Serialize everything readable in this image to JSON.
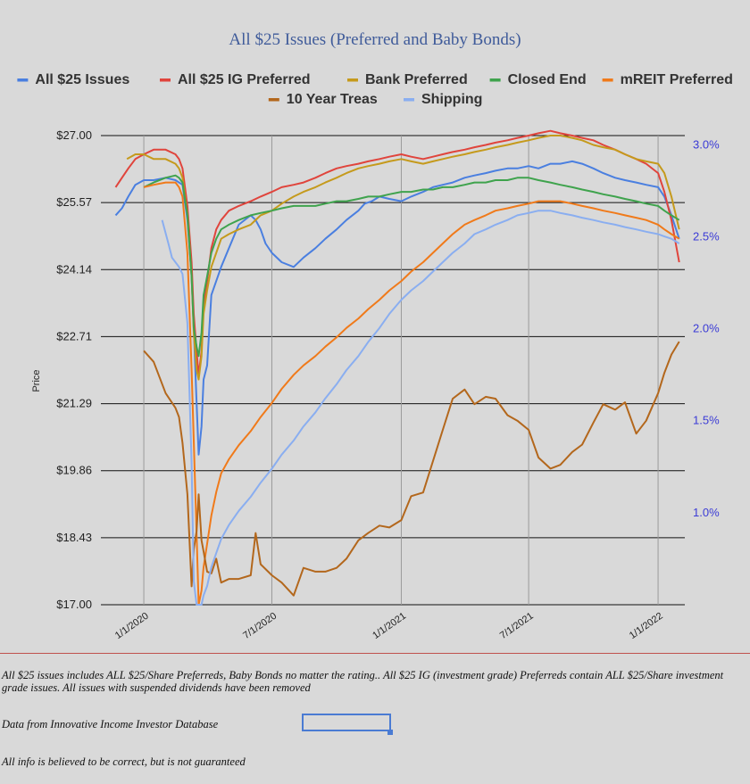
{
  "chart_data": {
    "type": "line",
    "title": "All $25 Issues (Preferred and Baby Bonds)",
    "ylabel": "Price",
    "ylim": [
      17.0,
      27.0
    ],
    "y2lim": [
      0.5,
      3.05
    ],
    "y_ticks": [
      "$17.00",
      "$18.43",
      "$19.86",
      "$21.29",
      "$22.71",
      "$24.14",
      "$25.57",
      "$27.00"
    ],
    "y2_ticks": [
      "1.0%",
      "1.5%",
      "2.0%",
      "2.5%",
      "3.0%"
    ],
    "y2_tick_values": [
      1.0,
      1.5,
      2.0,
      2.5,
      3.0
    ],
    "x_ticks": [
      "1/1/2020",
      "7/1/2020",
      "1/1/2021",
      "7/1/2021",
      "1/1/2022"
    ],
    "legend_position": "top",
    "series": [
      {
        "name": "All $25 Issues",
        "color": "#4a7fe0",
        "axis": "left",
        "x": [
          "2019-11-22",
          "2019-12-01",
          "2019-12-10",
          "2019-12-20",
          "2020-01-01",
          "2020-01-15",
          "2020-02-01",
          "2020-02-15",
          "2020-02-20",
          "2020-02-25",
          "2020-03-03",
          "2020-03-09",
          "2020-03-12",
          "2020-03-16",
          "2020-03-19",
          "2020-03-23",
          "2020-03-26",
          "2020-03-31",
          "2020-04-06",
          "2020-04-13",
          "2020-04-20",
          "2020-05-01",
          "2020-05-15",
          "2020-06-01",
          "2020-06-08",
          "2020-06-15",
          "2020-06-22",
          "2020-07-01",
          "2020-07-15",
          "2020-08-01",
          "2020-08-15",
          "2020-09-01",
          "2020-09-15",
          "2020-10-01",
          "2020-10-15",
          "2020-11-01",
          "2020-11-10",
          "2020-11-20",
          "2020-12-01",
          "2020-12-15",
          "2021-01-01",
          "2021-01-15",
          "2021-02-01",
          "2021-02-15",
          "2021-03-01",
          "2021-03-15",
          "2021-04-01",
          "2021-04-15",
          "2021-05-01",
          "2021-05-15",
          "2021-06-01",
          "2021-06-15",
          "2021-07-01",
          "2021-07-15",
          "2021-08-01",
          "2021-08-15",
          "2021-09-01",
          "2021-09-15",
          "2021-10-01",
          "2021-10-15",
          "2021-11-01",
          "2021-11-15",
          "2021-12-01",
          "2021-12-15",
          "2022-01-01",
          "2022-01-10",
          "2022-01-20",
          "2022-01-31"
        ],
        "values": [
          25.3,
          25.45,
          25.7,
          25.95,
          26.05,
          26.05,
          26.1,
          26.05,
          26.0,
          25.95,
          25.2,
          24.0,
          22.9,
          21.3,
          20.2,
          20.8,
          21.8,
          22.1,
          23.6,
          23.9,
          24.2,
          24.6,
          25.1,
          25.3,
          25.2,
          25.0,
          24.7,
          24.5,
          24.3,
          24.2,
          24.4,
          24.6,
          24.8,
          25.0,
          25.2,
          25.4,
          25.55,
          25.6,
          25.7,
          25.65,
          25.6,
          25.7,
          25.8,
          25.9,
          25.95,
          26.0,
          26.1,
          26.15,
          26.2,
          26.25,
          26.3,
          26.3,
          26.35,
          26.3,
          26.4,
          26.4,
          26.45,
          26.4,
          26.3,
          26.2,
          26.1,
          26.05,
          26.0,
          25.95,
          25.9,
          25.7,
          25.3,
          24.8
        ]
      },
      {
        "name": "All $25 IG Preferred",
        "color": "#e0443c",
        "axis": "left",
        "x": [
          "2019-11-22",
          "2019-12-01",
          "2019-12-10",
          "2019-12-20",
          "2020-01-01",
          "2020-01-15",
          "2020-02-01",
          "2020-02-15",
          "2020-02-20",
          "2020-02-25",
          "2020-03-03",
          "2020-03-09",
          "2020-03-12",
          "2020-03-16",
          "2020-03-19",
          "2020-03-23",
          "2020-03-26",
          "2020-03-31",
          "2020-04-06",
          "2020-04-13",
          "2020-04-20",
          "2020-05-01",
          "2020-05-15",
          "2020-06-01",
          "2020-06-15",
          "2020-07-01",
          "2020-07-15",
          "2020-08-01",
          "2020-08-15",
          "2020-09-01",
          "2020-09-15",
          "2020-10-01",
          "2020-10-15",
          "2020-11-01",
          "2020-11-15",
          "2020-12-01",
          "2020-12-15",
          "2021-01-01",
          "2021-01-15",
          "2021-02-01",
          "2021-02-15",
          "2021-03-01",
          "2021-03-15",
          "2021-04-01",
          "2021-04-15",
          "2021-05-01",
          "2021-05-15",
          "2021-06-01",
          "2021-06-15",
          "2021-07-01",
          "2021-07-15",
          "2021-08-01",
          "2021-08-15",
          "2021-09-01",
          "2021-09-15",
          "2021-10-01",
          "2021-10-15",
          "2021-11-01",
          "2021-11-15",
          "2021-12-01",
          "2021-12-15",
          "2022-01-01",
          "2022-01-10",
          "2022-01-20",
          "2022-01-31"
        ],
        "values": [
          25.9,
          26.1,
          26.3,
          26.5,
          26.6,
          26.7,
          26.7,
          26.6,
          26.5,
          26.3,
          25.5,
          24.3,
          23.2,
          22.4,
          21.9,
          22.4,
          23.4,
          23.9,
          24.6,
          25.0,
          25.2,
          25.4,
          25.5,
          25.6,
          25.7,
          25.8,
          25.9,
          25.95,
          26.0,
          26.1,
          26.2,
          26.3,
          26.35,
          26.4,
          26.45,
          26.5,
          26.55,
          26.6,
          26.55,
          26.5,
          26.55,
          26.6,
          26.65,
          26.7,
          26.75,
          26.8,
          26.85,
          26.9,
          26.95,
          27.0,
          27.05,
          27.1,
          27.05,
          27.0,
          26.95,
          26.9,
          26.8,
          26.7,
          26.6,
          26.5,
          26.4,
          26.2,
          25.8,
          25.2,
          24.3
        ]
      },
      {
        "name": "Bank Preferred",
        "color": "#c59a1c",
        "axis": "left",
        "x": [
          "2019-12-08",
          "2019-12-20",
          "2020-01-01",
          "2020-01-15",
          "2020-02-01",
          "2020-02-15",
          "2020-02-20",
          "2020-02-25",
          "2020-03-03",
          "2020-03-09",
          "2020-03-12",
          "2020-03-16",
          "2020-03-19",
          "2020-03-23",
          "2020-03-26",
          "2020-03-31",
          "2020-04-06",
          "2020-04-13",
          "2020-04-20",
          "2020-05-01",
          "2020-05-15",
          "2020-06-01",
          "2020-06-15",
          "2020-07-01",
          "2020-07-15",
          "2020-08-01",
          "2020-08-15",
          "2020-09-01",
          "2020-09-15",
          "2020-10-01",
          "2020-10-15",
          "2020-11-01",
          "2020-11-15",
          "2020-12-01",
          "2020-12-15",
          "2021-01-01",
          "2021-01-15",
          "2021-02-01",
          "2021-02-15",
          "2021-03-01",
          "2021-03-15",
          "2021-04-01",
          "2021-04-15",
          "2021-05-01",
          "2021-05-15",
          "2021-06-01",
          "2021-06-15",
          "2021-07-01",
          "2021-07-15",
          "2021-08-01",
          "2021-08-15",
          "2021-09-01",
          "2021-09-15",
          "2021-10-01",
          "2021-10-15",
          "2021-11-01",
          "2021-11-15",
          "2021-12-01",
          "2021-12-15",
          "2022-01-01",
          "2022-01-10",
          "2022-01-20",
          "2022-01-31"
        ],
        "values": [
          26.5,
          26.6,
          26.6,
          26.5,
          26.5,
          26.4,
          26.3,
          26.1,
          25.3,
          24.0,
          22.8,
          22.0,
          21.8,
          22.3,
          23.2,
          23.7,
          24.2,
          24.5,
          24.8,
          24.9,
          25.0,
          25.1,
          25.3,
          25.4,
          25.55,
          25.7,
          25.8,
          25.9,
          26.0,
          26.1,
          26.2,
          26.3,
          26.35,
          26.4,
          26.45,
          26.5,
          26.45,
          26.4,
          26.45,
          26.5,
          26.55,
          26.6,
          26.65,
          26.7,
          26.75,
          26.8,
          26.85,
          26.9,
          26.95,
          27.0,
          27.0,
          26.95,
          26.9,
          26.8,
          26.75,
          26.7,
          26.6,
          26.5,
          26.45,
          26.4,
          26.2,
          25.7,
          25.0
        ]
      },
      {
        "name": "Closed End",
        "color": "#3fa34d",
        "axis": "left",
        "x": [
          "2020-01-01",
          "2020-01-15",
          "2020-02-01",
          "2020-02-15",
          "2020-02-20",
          "2020-02-25",
          "2020-03-03",
          "2020-03-09",
          "2020-03-12",
          "2020-03-16",
          "2020-03-19",
          "2020-03-23",
          "2020-03-26",
          "2020-03-31",
          "2020-04-06",
          "2020-04-13",
          "2020-04-20",
          "2020-05-01",
          "2020-05-15",
          "2020-06-01",
          "2020-06-15",
          "2020-07-01",
          "2020-07-15",
          "2020-08-01",
          "2020-08-15",
          "2020-09-01",
          "2020-09-15",
          "2020-10-01",
          "2020-10-15",
          "2020-11-01",
          "2020-11-15",
          "2020-12-01",
          "2020-12-15",
          "2021-01-01",
          "2021-01-15",
          "2021-02-01",
          "2021-02-15",
          "2021-03-01",
          "2021-03-15",
          "2021-04-01",
          "2021-04-15",
          "2021-05-01",
          "2021-05-15",
          "2021-06-01",
          "2021-06-15",
          "2021-07-01",
          "2021-07-15",
          "2021-08-01",
          "2021-08-15",
          "2021-09-01",
          "2021-09-15",
          "2021-10-01",
          "2021-10-15",
          "2021-11-01",
          "2021-11-15",
          "2021-12-01",
          "2021-12-15",
          "2022-01-01",
          "2022-01-10",
          "2022-01-20",
          "2022-01-31"
        ],
        "values": [
          25.9,
          26.0,
          26.1,
          26.15,
          26.1,
          26.0,
          25.3,
          24.0,
          22.9,
          22.5,
          22.3,
          22.8,
          23.6,
          24.0,
          24.5,
          24.8,
          25.0,
          25.1,
          25.2,
          25.3,
          25.35,
          25.4,
          25.45,
          25.5,
          25.5,
          25.5,
          25.55,
          25.6,
          25.6,
          25.65,
          25.7,
          25.7,
          25.75,
          25.8,
          25.8,
          25.85,
          25.85,
          25.9,
          25.9,
          25.95,
          26.0,
          26.0,
          26.05,
          26.05,
          26.1,
          26.1,
          26.05,
          26.0,
          25.95,
          25.9,
          25.85,
          25.8,
          25.75,
          25.7,
          25.65,
          25.6,
          25.55,
          25.5,
          25.4,
          25.3,
          25.2
        ]
      },
      {
        "name": "mREIT Preferred",
        "color": "#f07a1a",
        "axis": "left",
        "x": [
          "2020-01-01",
          "2020-01-15",
          "2020-02-01",
          "2020-02-15",
          "2020-02-20",
          "2020-02-25",
          "2020-03-03",
          "2020-03-09",
          "2020-03-12",
          "2020-03-16",
          "2020-03-19",
          "2020-03-23",
          "2020-03-26",
          "2020-03-31",
          "2020-04-06",
          "2020-04-13",
          "2020-04-20",
          "2020-05-01",
          "2020-05-15",
          "2020-06-01",
          "2020-06-15",
          "2020-07-01",
          "2020-07-15",
          "2020-08-01",
          "2020-08-15",
          "2020-09-01",
          "2020-09-15",
          "2020-10-01",
          "2020-10-15",
          "2020-11-01",
          "2020-11-15",
          "2020-12-01",
          "2020-12-15",
          "2021-01-01",
          "2021-01-15",
          "2021-02-01",
          "2021-02-15",
          "2021-03-01",
          "2021-03-15",
          "2021-04-01",
          "2021-04-15",
          "2021-05-01",
          "2021-05-15",
          "2021-06-01",
          "2021-06-15",
          "2021-07-01",
          "2021-07-15",
          "2021-08-01",
          "2021-08-15",
          "2021-09-01",
          "2021-09-15",
          "2021-10-01",
          "2021-10-15",
          "2021-11-01",
          "2021-11-15",
          "2021-12-01",
          "2021-12-15",
          "2022-01-01",
          "2022-01-10",
          "2022-01-20",
          "2022-01-31"
        ],
        "values": [
          25.9,
          25.95,
          26.0,
          26.0,
          25.9,
          25.7,
          24.5,
          22.0,
          20.5,
          18.5,
          17.0,
          17.3,
          17.8,
          18.3,
          18.9,
          19.4,
          19.8,
          20.1,
          20.4,
          20.7,
          21.0,
          21.3,
          21.6,
          21.9,
          22.1,
          22.3,
          22.5,
          22.7,
          22.9,
          23.1,
          23.3,
          23.5,
          23.7,
          23.9,
          24.1,
          24.3,
          24.5,
          24.7,
          24.9,
          25.1,
          25.2,
          25.3,
          25.4,
          25.45,
          25.5,
          25.55,
          25.6,
          25.6,
          25.6,
          25.55,
          25.5,
          25.45,
          25.4,
          25.35,
          25.3,
          25.25,
          25.2,
          25.1,
          25.0,
          24.9,
          24.8
        ]
      },
      {
        "name": "10 Year Treas",
        "color": "#b3671c",
        "axis": "right",
        "x": [
          "2020-01-01",
          "2020-01-15",
          "2020-02-01",
          "2020-02-15",
          "2020-02-20",
          "2020-02-25",
          "2020-03-03",
          "2020-03-09",
          "2020-03-12",
          "2020-03-16",
          "2020-03-19",
          "2020-03-23",
          "2020-03-26",
          "2020-03-31",
          "2020-04-06",
          "2020-04-13",
          "2020-04-20",
          "2020-05-01",
          "2020-05-15",
          "2020-06-01",
          "2020-06-08",
          "2020-06-15",
          "2020-07-01",
          "2020-07-15",
          "2020-08-01",
          "2020-08-15",
          "2020-09-01",
          "2020-09-15",
          "2020-10-01",
          "2020-10-15",
          "2020-11-01",
          "2020-11-15",
          "2020-12-01",
          "2020-12-15",
          "2021-01-01",
          "2021-01-15",
          "2021-02-01",
          "2021-02-15",
          "2021-03-01",
          "2021-03-15",
          "2021-04-01",
          "2021-04-15",
          "2021-05-01",
          "2021-05-15",
          "2021-06-01",
          "2021-06-15",
          "2021-07-01",
          "2021-07-15",
          "2021-08-01",
          "2021-08-15",
          "2021-09-01",
          "2021-09-15",
          "2021-10-01",
          "2021-10-15",
          "2021-11-01",
          "2021-11-15",
          "2021-12-01",
          "2021-12-15",
          "2022-01-01",
          "2022-01-10",
          "2022-01-20",
          "2022-01-31"
        ],
        "values": [
          1.88,
          1.82,
          1.65,
          1.57,
          1.52,
          1.38,
          1.1,
          0.6,
          0.8,
          0.9,
          1.1,
          0.85,
          0.79,
          0.68,
          0.67,
          0.75,
          0.62,
          0.64,
          0.64,
          0.66,
          0.89,
          0.72,
          0.66,
          0.62,
          0.55,
          0.7,
          0.68,
          0.68,
          0.7,
          0.75,
          0.85,
          0.89,
          0.93,
          0.92,
          0.96,
          1.09,
          1.11,
          1.28,
          1.45,
          1.62,
          1.67,
          1.59,
          1.63,
          1.62,
          1.53,
          1.5,
          1.45,
          1.3,
          1.24,
          1.26,
          1.33,
          1.37,
          1.49,
          1.59,
          1.56,
          1.6,
          1.43,
          1.5,
          1.65,
          1.76,
          1.86,
          1.93
        ]
      },
      {
        "name": "Shipping",
        "color": "#8aaef0",
        "axis": "left",
        "x": [
          "2020-01-27",
          "2020-02-05",
          "2020-02-10",
          "2020-02-15",
          "2020-02-20",
          "2020-02-25",
          "2020-03-03",
          "2020-03-09",
          "2020-03-12",
          "2020-03-16",
          "2020-03-19",
          "2020-03-23",
          "2020-03-26",
          "2020-03-31",
          "2020-04-06",
          "2020-04-13",
          "2020-04-20",
          "2020-05-01",
          "2020-05-15",
          "2020-06-01",
          "2020-06-15",
          "2020-07-01",
          "2020-07-15",
          "2020-08-01",
          "2020-08-15",
          "2020-09-01",
          "2020-09-15",
          "2020-10-01",
          "2020-10-15",
          "2020-11-01",
          "2020-11-15",
          "2020-12-01",
          "2020-12-15",
          "2021-01-01",
          "2021-01-15",
          "2021-02-01",
          "2021-02-15",
          "2021-03-01",
          "2021-03-15",
          "2021-04-01",
          "2021-04-15",
          "2021-05-01",
          "2021-05-15",
          "2021-06-01",
          "2021-06-15",
          "2021-07-01",
          "2021-07-15",
          "2021-08-01",
          "2021-08-15",
          "2021-09-01",
          "2021-09-15",
          "2021-10-01",
          "2021-10-15",
          "2021-11-01",
          "2021-11-15",
          "2021-12-01",
          "2021-12-15",
          "2022-01-01",
          "2022-01-10",
          "2022-01-20",
          "2022-01-31"
        ],
        "values": [
          25.2,
          24.7,
          24.4,
          24.3,
          24.2,
          24.05,
          23.0,
          20.0,
          17.5,
          17.0,
          17.0,
          17.0,
          17.2,
          17.4,
          17.8,
          18.1,
          18.4,
          18.7,
          19.0,
          19.3,
          19.6,
          19.9,
          20.2,
          20.5,
          20.8,
          21.1,
          21.4,
          21.7,
          22.0,
          22.3,
          22.6,
          22.9,
          23.2,
          23.5,
          23.7,
          23.9,
          24.1,
          24.3,
          24.5,
          24.7,
          24.9,
          25.0,
          25.1,
          25.2,
          25.3,
          25.35,
          25.4,
          25.4,
          25.35,
          25.3,
          25.25,
          25.2,
          25.15,
          25.1,
          25.05,
          25.0,
          24.95,
          24.9,
          24.85,
          24.8,
          24.7
        ]
      }
    ]
  },
  "notes": {
    "line1": "All $25 issues includes ALL $25/Share Preferreds, Baby Bonds no matter the rating..  All $25 IG (investment grade) Preferreds contain ALL $25/Share investment grade issues.  All issues with suspended dividends have been removed",
    "line2": "Data from Innovative Income Investor Database",
    "line3": "All info is believed to be correct, but is not guaranteed"
  }
}
